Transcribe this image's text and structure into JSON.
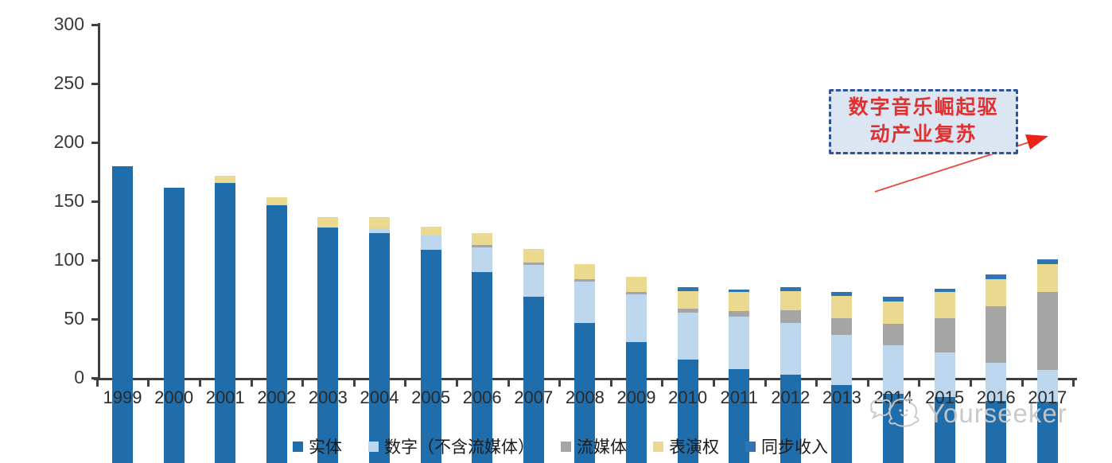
{
  "chart_data": {
    "type": "bar",
    "stacked": true,
    "title": "",
    "xlabel": "",
    "ylabel": "",
    "categories": [
      "1999",
      "2000",
      "2001",
      "2002",
      "2003",
      "2004",
      "2005",
      "2006",
      "2007",
      "2008",
      "2009",
      "2010",
      "2011",
      "2012",
      "2013",
      "2014",
      "2015",
      "2016",
      "2017"
    ],
    "series": [
      {
        "name": "实体",
        "color": "#1f6dab",
        "values": [
          252,
          234,
          238,
          219,
          200,
          195,
          181,
          162,
          141,
          119,
          103,
          88,
          80,
          75,
          66,
          59,
          56,
          53,
          52
        ]
      },
      {
        "name": "数字（不含流媒体）",
        "color": "#bdd7ee",
        "values": [
          0,
          0,
          0,
          0,
          0,
          4,
          12,
          21,
          27,
          35,
          40,
          40,
          44,
          44,
          43,
          41,
          38,
          32,
          27
        ]
      },
      {
        "name": "流媒体",
        "color": "#a5a5a5",
        "values": [
          0,
          0,
          0,
          0,
          0,
          0,
          0,
          2,
          2,
          2,
          2,
          3,
          5,
          11,
          14,
          18,
          29,
          48,
          66
        ]
      },
      {
        "name": "表演权",
        "color": "#ead98f",
        "values": [
          0,
          0,
          6,
          7,
          9,
          10,
          8,
          10,
          12,
          13,
          13,
          15,
          16,
          16,
          19,
          19,
          22,
          23,
          24
        ]
      },
      {
        "name": "同步收入",
        "color": "#2e75b6",
        "values": [
          0,
          0,
          0,
          0,
          0,
          0,
          0,
          0,
          0,
          0,
          0,
          3,
          2,
          3,
          3,
          4,
          3,
          4,
          4
        ]
      }
    ],
    "ylim": [
      0,
      300
    ],
    "yticks": [
      0,
      50,
      100,
      150,
      200,
      250,
      300
    ],
    "grid": false,
    "legend_position": "bottom"
  },
  "annotation": {
    "line1": "数字音乐崛起驱",
    "line2": "动产业复苏",
    "text_color": "#e03131",
    "border_color": "#2f5496",
    "fill_color": "#dbe6f2"
  },
  "watermark": {
    "text": "Yourseeker",
    "color": "#c7c7c7"
  }
}
